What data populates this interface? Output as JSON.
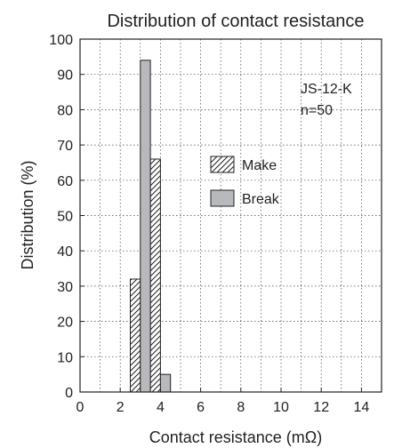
{
  "chart_data": {
    "type": "bar",
    "title": "Distribution of contact resistance",
    "xlabel": "Contact resistance (mΩ)",
    "ylabel": "Distribution (%)",
    "xlim": [
      0,
      15
    ],
    "ylim": [
      0,
      100
    ],
    "xticks": [
      0,
      2,
      4,
      6,
      8,
      10,
      12,
      14
    ],
    "yticks": [
      0,
      10,
      20,
      30,
      40,
      50,
      60,
      70,
      80,
      90,
      100
    ],
    "grid": true,
    "bin_width": 0.5,
    "annotations": [
      "JS-12-K",
      "n=50"
    ],
    "legend_position": "center",
    "series": [
      {
        "name": "Make",
        "pattern": "hatched",
        "color": "#ffffff",
        "points": [
          {
            "x": 2.5,
            "value": 32
          },
          {
            "x": 3.5,
            "value": 66
          }
        ]
      },
      {
        "name": "Break",
        "pattern": "solid",
        "color": "#b7b9bd",
        "points": [
          {
            "x": 3.0,
            "value": 94
          },
          {
            "x": 4.0,
            "value": 5
          }
        ]
      }
    ]
  }
}
